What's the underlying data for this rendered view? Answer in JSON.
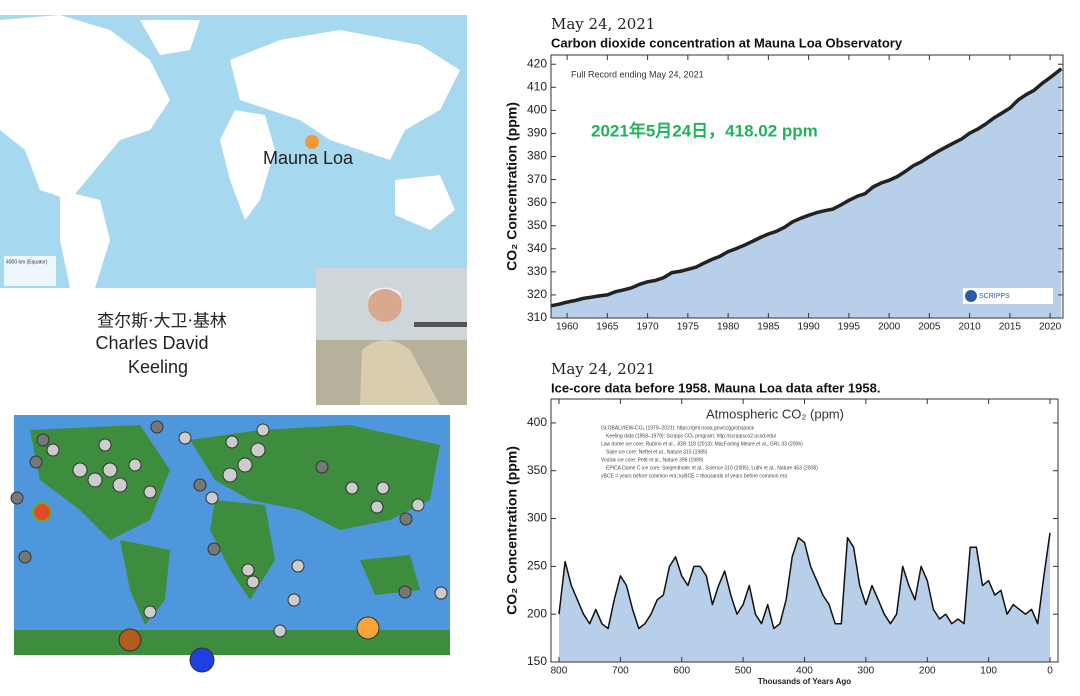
{
  "map": {
    "label": "Mauna Loa",
    "scale": "4000 km (Equator)"
  },
  "person": {
    "name_cn": "查尔斯·大卫·基林",
    "name_en_1": "Charles David",
    "name_en_2": "Keeling"
  },
  "chart_data": [
    {
      "type": "line",
      "date": "May 24, 2021",
      "title": "Carbon dioxide concentration at Mauna Loa Observatory",
      "ylabel": "CO₂ Concentration (ppm)",
      "annotation": "Full Record ending May 24, 2021",
      "highlight": "2021年5月24日，418.02 ppm",
      "logo": "SCRIPPS",
      "color": "#222222",
      "fill": "#b8cfe9",
      "x": [
        1958,
        1959,
        1960,
        1961,
        1962,
        1963,
        1964,
        1965,
        1966,
        1967,
        1968,
        1969,
        1970,
        1971,
        1972,
        1973,
        1974,
        1975,
        1976,
        1977,
        1978,
        1979,
        1980,
        1981,
        1982,
        1983,
        1984,
        1985,
        1986,
        1987,
        1988,
        1989,
        1990,
        1991,
        1992,
        1993,
        1994,
        1995,
        1996,
        1997,
        1998,
        1999,
        2000,
        2001,
        2002,
        2003,
        2004,
        2005,
        2006,
        2007,
        2008,
        2009,
        2010,
        2011,
        2012,
        2013,
        2014,
        2015,
        2016,
        2017,
        2018,
        2019,
        2020,
        2021.4
      ],
      "values": [
        315.3,
        316.0,
        316.9,
        317.6,
        318.5,
        319.0,
        319.6,
        320.0,
        321.4,
        322.2,
        323.1,
        324.6,
        325.7,
        326.3,
        327.5,
        329.7,
        330.2,
        331.1,
        332.0,
        333.8,
        335.4,
        336.8,
        338.8,
        340.1,
        341.5,
        343.2,
        344.9,
        346.4,
        347.6,
        349.3,
        351.7,
        353.2,
        354.5,
        355.7,
        356.5,
        357.2,
        359.0,
        361.0,
        362.7,
        363.9,
        366.8,
        368.5,
        369.7,
        371.3,
        373.5,
        376.0,
        377.7,
        380.0,
        382.1,
        384.0,
        385.8,
        387.6,
        390.1,
        391.9,
        394.1,
        396.7,
        398.8,
        401.0,
        404.4,
        406.8,
        408.7,
        411.7,
        414.2,
        418.02
      ],
      "xlim": [
        1958,
        2021.6
      ],
      "xticks": [
        1960,
        1965,
        1970,
        1975,
        1980,
        1985,
        1990,
        1995,
        2000,
        2005,
        2010,
        2015,
        2020
      ],
      "ylim": [
        310,
        424
      ],
      "yticks": [
        310,
        320,
        330,
        340,
        350,
        360,
        370,
        380,
        390,
        400,
        410,
        420
      ]
    },
    {
      "type": "line",
      "date": "May 24, 2021",
      "title": "Ice-core data before 1958. Mauna Loa data after 1958.",
      "ylabel": "CO₂ Concentration (ppm)",
      "xlabel": "Thousands of Years Ago",
      "inner_title": "Atmospheric CO₂ (ppm)",
      "legend_notes": [
        "GLOBALVIEW-CO₂ (1979–2021): https://gml.noaa.gov/ccgg/obspack",
        "Keeling data (1958–1979): Scripps CO₂ program; http://scrippsco2.ucsd.edu/",
        "Law dome ice core: Rubino et al., JGR 118 (2013); MacFarling Meure et al., GRL 33 (2006)",
        "Siple ice core: Neftel et al., Nature 315 (1985)",
        "Vostok ice core: Petit et al., Nature 399 (1999)",
        "EPICA Dome C ice core: Siegenthaler et al., Science 310 (2005); Lüthi et al., Nature 453 (2008)",
        "yBCE = years before common era; kyBCE = thousands of years before common era"
      ],
      "color": "#111111",
      "fill": "#b8cfe9",
      "x": [
        800,
        790,
        780,
        770,
        760,
        750,
        740,
        730,
        720,
        710,
        700,
        690,
        680,
        670,
        660,
        650,
        640,
        630,
        620,
        610,
        600,
        590,
        580,
        570,
        560,
        550,
        540,
        530,
        520,
        510,
        500,
        490,
        480,
        470,
        460,
        450,
        440,
        430,
        420,
        410,
        400,
        390,
        380,
        370,
        360,
        350,
        340,
        330,
        320,
        310,
        300,
        290,
        280,
        270,
        260,
        250,
        240,
        230,
        220,
        210,
        200,
        190,
        180,
        170,
        160,
        150,
        140,
        130,
        120,
        110,
        100,
        90,
        80,
        70,
        60,
        50,
        40,
        30,
        20,
        10,
        0
      ],
      "values": [
        200,
        255,
        230,
        215,
        200,
        190,
        205,
        190,
        185,
        215,
        240,
        230,
        205,
        185,
        190,
        200,
        215,
        220,
        250,
        260,
        240,
        230,
        250,
        250,
        240,
        210,
        230,
        245,
        220,
        200,
        210,
        230,
        200,
        190,
        210,
        185,
        190,
        215,
        260,
        280,
        275,
        250,
        235,
        220,
        210,
        190,
        190,
        280,
        270,
        230,
        210,
        230,
        215,
        200,
        190,
        200,
        250,
        230,
        215,
        250,
        235,
        205,
        195,
        200,
        190,
        195,
        190,
        270,
        270,
        230,
        235,
        220,
        225,
        200,
        210,
        205,
        200,
        205,
        190,
        240,
        285
      ],
      "xlim": [
        813,
        -13
      ],
      "xticks": [
        800,
        700,
        600,
        500,
        400,
        300,
        200,
        100,
        0
      ],
      "ylim": [
        150,
        425
      ],
      "yticks": [
        150,
        200,
        250,
        300,
        350,
        400
      ]
    }
  ]
}
